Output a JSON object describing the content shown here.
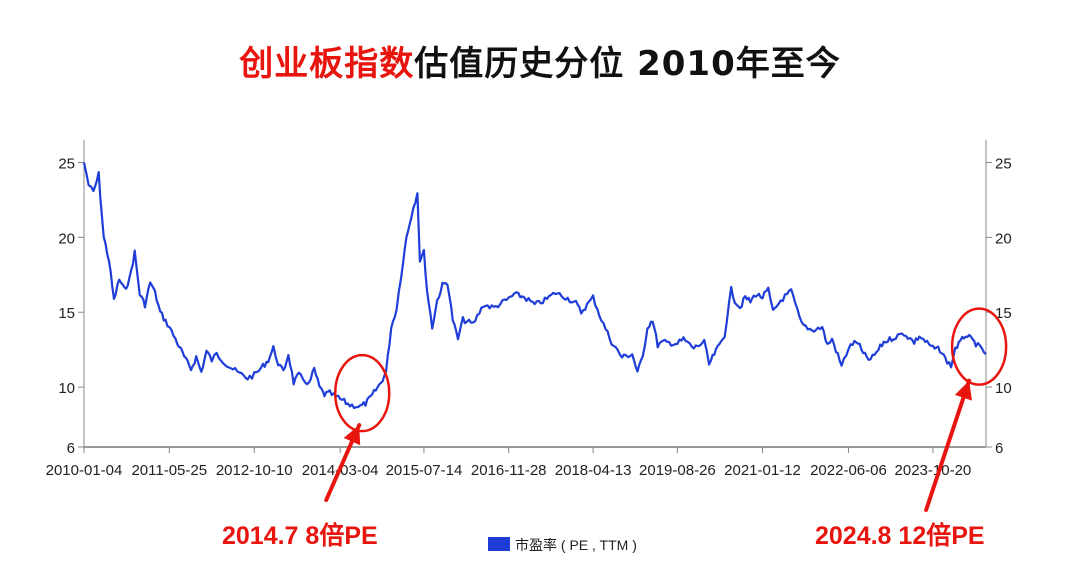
{
  "title": {
    "highlight": "创业板指数",
    "rest": "估值历史分位  2010年至今",
    "highlight_color": "#e8150f"
  },
  "chart_data": {
    "type": "line",
    "title": "创业板指数估值历史分位  2010年至今",
    "xlabel": "",
    "ylabel": "",
    "x_tick_labels": [
      "2010-01-04",
      "2011-05-25",
      "2012-10-10",
      "2014-03-04",
      "2015-07-14",
      "2016-11-28",
      "2018-04-13",
      "2019-08-26",
      "2021-01-12",
      "2022-06-06",
      "2023-10-20"
    ],
    "y_ticks": [
      6,
      10,
      15,
      20,
      25
    ],
    "ylim": [
      6,
      26.5
    ],
    "xlim": [
      "2010-01-04",
      "2024-08-30"
    ],
    "grid": false,
    "legend_position": "bottom-center",
    "series": [
      {
        "name": "市盈率 ( PE , TTM )",
        "color": "#1f3ed8",
        "points": [
          [
            "2010-01-04",
            25.0
          ],
          [
            "2010-02-01",
            23.5
          ],
          [
            "2010-03-01",
            23.0
          ],
          [
            "2010-04-01",
            24.2
          ],
          [
            "2010-05-01",
            20.0
          ],
          [
            "2010-06-01",
            18.5
          ],
          [
            "2010-07-01",
            15.8
          ],
          [
            "2010-08-01",
            17.2
          ],
          [
            "2010-09-01",
            16.5
          ],
          [
            "2010-10-01",
            17.2
          ],
          [
            "2010-11-01",
            19.0
          ],
          [
            "2010-12-01",
            16.2
          ],
          [
            "2011-01-01",
            15.5
          ],
          [
            "2011-02-01",
            17.0
          ],
          [
            "2011-03-01",
            16.3
          ],
          [
            "2011-04-01",
            15.0
          ],
          [
            "2011-05-25",
            14.0
          ],
          [
            "2011-07-01",
            13.2
          ],
          [
            "2011-08-01",
            12.5
          ],
          [
            "2011-09-01",
            11.8
          ],
          [
            "2011-10-01",
            11.2
          ],
          [
            "2011-11-01",
            12.0
          ],
          [
            "2011-12-01",
            11.0
          ],
          [
            "2012-01-01",
            12.4
          ],
          [
            "2012-02-01",
            11.8
          ],
          [
            "2012-03-01",
            12.2
          ],
          [
            "2012-05-01",
            11.5
          ],
          [
            "2012-07-01",
            11.0
          ],
          [
            "2012-09-01",
            10.6
          ],
          [
            "2012-10-10",
            10.8
          ],
          [
            "2012-12-01",
            11.4
          ],
          [
            "2013-01-01",
            11.8
          ],
          [
            "2013-02-01",
            12.6
          ],
          [
            "2013-03-01",
            11.6
          ],
          [
            "2013-04-01",
            11.0
          ],
          [
            "2013-05-01",
            12.2
          ],
          [
            "2013-06-01",
            10.3
          ],
          [
            "2013-07-01",
            10.8
          ],
          [
            "2013-09-01",
            10.2
          ],
          [
            "2013-10-01",
            11.2
          ],
          [
            "2013-11-01",
            10.0
          ],
          [
            "2013-12-01",
            9.5
          ],
          [
            "2014-01-01",
            9.6
          ],
          [
            "2014-03-04",
            9.2
          ],
          [
            "2014-05-01",
            8.8
          ],
          [
            "2014-07-01",
            8.7
          ],
          [
            "2014-08-01",
            8.9
          ],
          [
            "2014-09-01",
            9.3
          ],
          [
            "2014-10-01",
            9.8
          ],
          [
            "2014-11-01",
            10.3
          ],
          [
            "2014-12-01",
            11.0
          ],
          [
            "2015-01-01",
            14.0
          ],
          [
            "2015-02-01",
            15.2
          ],
          [
            "2015-03-01",
            17.5
          ],
          [
            "2015-04-01",
            20.0
          ],
          [
            "2015-05-01",
            21.5
          ],
          [
            "2015-06-05",
            23.0
          ],
          [
            "2015-06-20",
            18.5
          ],
          [
            "2015-07-14",
            19.0
          ],
          [
            "2015-08-01",
            16.5
          ],
          [
            "2015-09-01",
            14.0
          ],
          [
            "2015-10-01",
            15.8
          ],
          [
            "2015-11-01",
            16.8
          ],
          [
            "2015-12-01",
            17.0
          ],
          [
            "2016-01-01",
            14.5
          ],
          [
            "2016-02-01",
            13.2
          ],
          [
            "2016-03-01",
            14.5
          ],
          [
            "2016-05-01",
            14.2
          ],
          [
            "2016-07-01",
            15.5
          ],
          [
            "2016-09-01",
            15.3
          ],
          [
            "2016-11-28",
            15.9
          ],
          [
            "2017-01-01",
            16.2
          ],
          [
            "2017-03-01",
            16.0
          ],
          [
            "2017-05-01",
            15.5
          ],
          [
            "2017-07-01",
            15.8
          ],
          [
            "2017-09-01",
            16.3
          ],
          [
            "2017-11-01",
            16.0
          ],
          [
            "2018-01-01",
            15.6
          ],
          [
            "2018-02-01",
            15.0
          ],
          [
            "2018-04-13",
            16.0
          ],
          [
            "2018-06-01",
            14.5
          ],
          [
            "2018-08-01",
            13.0
          ],
          [
            "2018-10-01",
            12.0
          ],
          [
            "2018-12-01",
            12.2
          ],
          [
            "2019-01-01",
            11.0
          ],
          [
            "2019-02-01",
            12.0
          ],
          [
            "2019-03-01",
            14.0
          ],
          [
            "2019-04-01",
            14.5
          ],
          [
            "2019-05-01",
            12.8
          ],
          [
            "2019-06-01",
            13.0
          ],
          [
            "2019-08-26",
            12.9
          ],
          [
            "2019-10-01",
            13.2
          ],
          [
            "2019-12-01",
            12.6
          ],
          [
            "2020-02-01",
            13.0
          ],
          [
            "2020-03-01",
            11.5
          ],
          [
            "2020-04-01",
            12.2
          ],
          [
            "2020-05-01",
            12.8
          ],
          [
            "2020-06-01",
            13.5
          ],
          [
            "2020-07-10",
            16.5
          ],
          [
            "2020-08-01",
            15.8
          ],
          [
            "2020-09-01",
            15.3
          ],
          [
            "2020-10-01",
            16.0
          ],
          [
            "2020-11-01",
            15.7
          ],
          [
            "2020-12-01",
            16.2
          ],
          [
            "2021-01-12",
            16.0
          ],
          [
            "2021-02-15",
            16.5
          ],
          [
            "2021-03-15",
            15.0
          ],
          [
            "2021-05-01",
            15.8
          ],
          [
            "2021-07-01",
            16.4
          ],
          [
            "2021-09-01",
            14.2
          ],
          [
            "2021-11-01",
            13.8
          ],
          [
            "2022-01-01",
            14.0
          ],
          [
            "2022-02-01",
            12.8
          ],
          [
            "2022-03-01",
            13.2
          ],
          [
            "2022-04-26",
            11.4
          ],
          [
            "2022-06-06",
            12.6
          ],
          [
            "2022-07-01",
            12.9
          ],
          [
            "2022-08-01",
            13.0
          ],
          [
            "2022-09-01",
            12.2
          ],
          [
            "2022-10-15",
            11.8
          ],
          [
            "2022-12-01",
            12.5
          ],
          [
            "2023-01-01",
            13.0
          ],
          [
            "2023-03-01",
            13.3
          ],
          [
            "2023-05-01",
            13.6
          ],
          [
            "2023-07-01",
            13.0
          ],
          [
            "2023-08-01",
            13.4
          ],
          [
            "2023-10-20",
            12.6
          ],
          [
            "2023-12-01",
            12.5
          ],
          [
            "2024-01-01",
            11.9
          ],
          [
            "2024-02-05",
            11.4
          ],
          [
            "2024-03-01",
            12.6
          ],
          [
            "2024-04-01",
            13.0
          ],
          [
            "2024-05-01",
            13.5
          ],
          [
            "2024-06-01",
            13.2
          ],
          [
            "2024-07-01",
            12.9
          ],
          [
            "2024-08-30",
            12.2
          ]
        ]
      }
    ],
    "annotations": [
      {
        "text": "2014.7   8倍PE",
        "x": "2014-07-01",
        "y": 8.7
      },
      {
        "text": "2024.8   12倍PE",
        "x": "2024-08-01",
        "y": 12.2
      }
    ]
  }
}
